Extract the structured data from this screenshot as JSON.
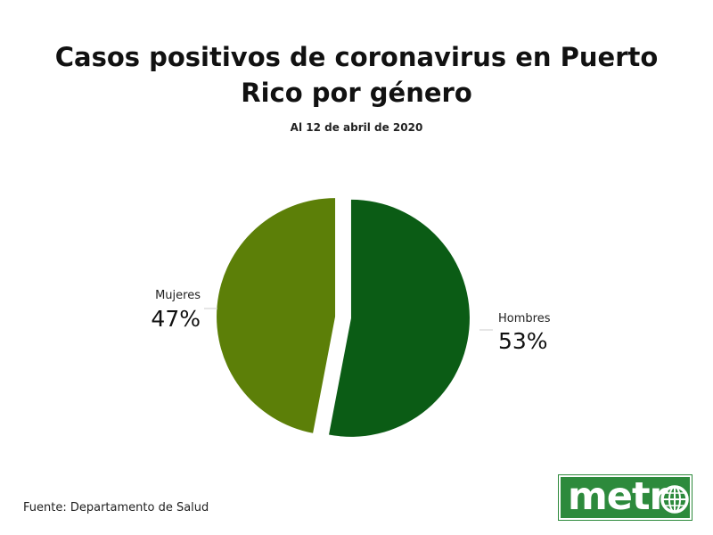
{
  "title_lines": [
    "Casos positivos de coronavirus en Puerto",
    "Rico por género"
  ],
  "subtitle": "Al 12 de abril de 2020",
  "source": "Fuente: Departamento de Salud",
  "logo": {
    "text": "metr",
    "icon": "globe-icon",
    "background": "#2d8a3c"
  },
  "chart_data": {
    "type": "pie",
    "slices": [
      {
        "label": "Hombres",
        "value_label": "53%",
        "value": 53,
        "color": "#0b5c15"
      },
      {
        "label": "Mujeres",
        "value_label": "47%",
        "value": 47,
        "color": "#5c7f08"
      }
    ],
    "start": "12 o'clock, clockwise",
    "exploded": true
  }
}
